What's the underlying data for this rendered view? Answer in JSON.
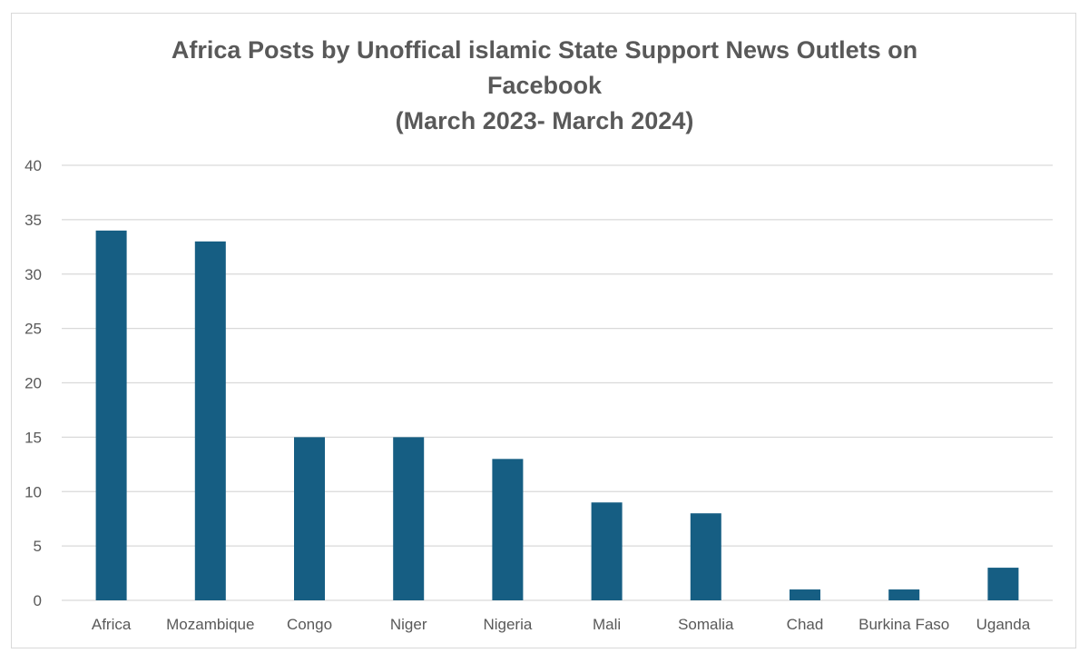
{
  "chart_data": {
    "type": "bar",
    "title_lines": [
      "Africa Posts by Unoffical islamic State Support News Outlets on",
      "Facebook",
      "(March 2023- March 2024)"
    ],
    "categories": [
      "Africa",
      "Mozambique",
      "Congo",
      "Niger",
      "Nigeria",
      "Mali",
      "Somalia",
      "Chad",
      "Burkina Faso",
      "Uganda"
    ],
    "values": [
      34,
      33,
      15,
      15,
      13,
      9,
      8,
      1,
      1,
      3
    ],
    "xlabel": "",
    "ylabel": "",
    "ylim": [
      0,
      40
    ],
    "yticks": [
      "0",
      "5",
      "10",
      "15",
      "20",
      "25",
      "30",
      "35",
      "40"
    ],
    "grid": true,
    "legend": "none",
    "bar_color": "#165E83"
  }
}
